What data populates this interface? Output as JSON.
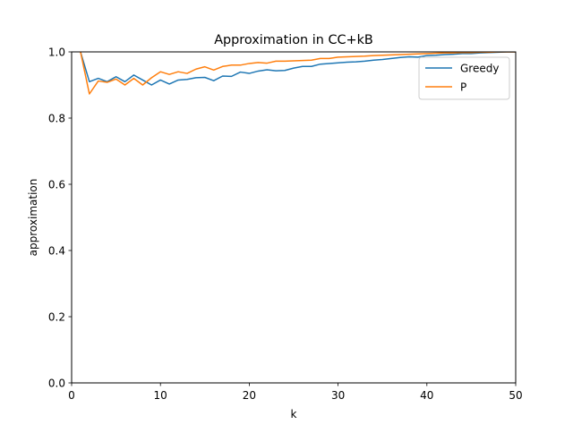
{
  "chart_data": {
    "type": "line",
    "title": "Approximation in CC+kB",
    "xlabel": "k",
    "ylabel": "approximation",
    "xlim": [
      0,
      50
    ],
    "ylim": [
      0,
      1.0
    ],
    "xticks": [
      0,
      10,
      20,
      30,
      40,
      50
    ],
    "yticks": [
      0.0,
      0.2,
      0.4,
      0.6,
      0.8,
      1.0
    ],
    "xtick_labels": [
      "0",
      "10",
      "20",
      "30",
      "40",
      "50"
    ],
    "ytick_labels": [
      "0.0",
      "0.2",
      "0.4",
      "0.6",
      "0.8",
      "1.0"
    ],
    "grid": false,
    "legend_position": "top-right",
    "x": [
      1,
      2,
      3,
      4,
      5,
      6,
      7,
      8,
      9,
      10,
      11,
      12,
      13,
      14,
      15,
      16,
      17,
      18,
      19,
      20,
      21,
      22,
      23,
      24,
      25,
      26,
      27,
      28,
      29,
      30,
      31,
      32,
      33,
      34,
      35,
      36,
      37,
      38,
      39,
      40,
      41,
      42,
      43,
      44,
      45,
      46,
      47,
      48,
      49,
      50
    ],
    "series": [
      {
        "name": "Greedy",
        "color": "#1f77b4",
        "values": [
          1.0,
          0.91,
          0.92,
          0.91,
          0.925,
          0.91,
          0.93,
          0.915,
          0.9,
          0.915,
          0.903,
          0.915,
          0.917,
          0.922,
          0.923,
          0.913,
          0.927,
          0.926,
          0.939,
          0.935,
          0.942,
          0.946,
          0.943,
          0.944,
          0.951,
          0.956,
          0.956,
          0.963,
          0.965,
          0.967,
          0.969,
          0.97,
          0.972,
          0.975,
          0.977,
          0.98,
          0.983,
          0.985,
          0.984,
          0.989,
          0.99,
          0.992,
          0.993,
          0.995,
          0.995,
          0.997,
          0.998,
          0.999,
          1.0,
          1.0
        ]
      },
      {
        "name": "P",
        "color": "#ff7f0e",
        "values": [
          1.0,
          0.873,
          0.912,
          0.908,
          0.918,
          0.9,
          0.92,
          0.9,
          0.922,
          0.94,
          0.932,
          0.94,
          0.935,
          0.948,
          0.955,
          0.945,
          0.956,
          0.96,
          0.96,
          0.965,
          0.968,
          0.966,
          0.972,
          0.972,
          0.973,
          0.974,
          0.975,
          0.98,
          0.98,
          0.984,
          0.985,
          0.986,
          0.987,
          0.989,
          0.99,
          0.991,
          0.992,
          0.993,
          0.994,
          0.995,
          0.996,
          0.997,
          0.997,
          0.998,
          0.998,
          0.999,
          0.999,
          1.0,
          1.0,
          1.0
        ]
      }
    ]
  }
}
